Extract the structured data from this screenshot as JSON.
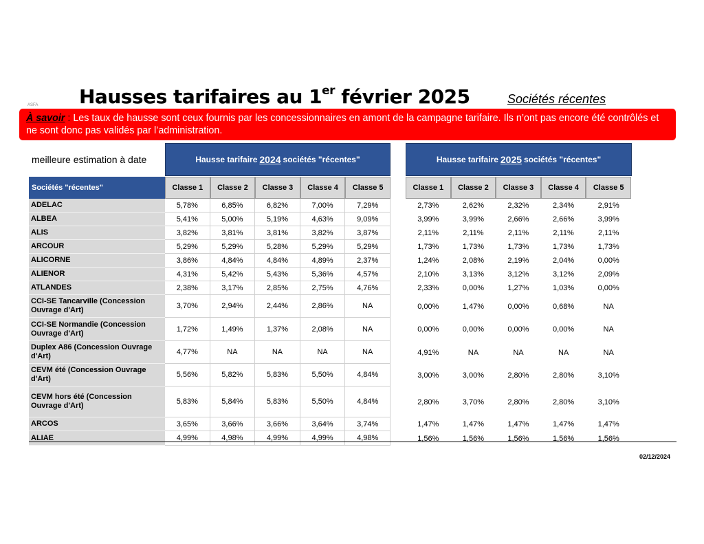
{
  "header": {
    "logo_text": "ASFA",
    "title_prefix": "Hausses tarifaires au 1",
    "title_sup": "er",
    "title_suffix": " février 2025",
    "subtitle": "Sociétés récentes"
  },
  "banner": {
    "lead": "À savoir",
    "colon": " :",
    "text": " Les taux de hausse sont ceux fournis par les concessionnaires en amont de la campagne tarifaire. Ils n’ont pas encore été contrôlés et ne sont donc pas validés par l’administration.",
    "color": "#ff0000"
  },
  "estimate_label": "meilleure estimation à date",
  "table": {
    "societes_header": "Sociétés \"récentes\"",
    "groups": [
      {
        "prefix": "Hausse tarifaire",
        "year": "2024",
        "suffix": "sociétés \"récentes\""
      },
      {
        "prefix": "Hausse tarifaire",
        "year": "2025",
        "suffix": "sociétés \"récentes\""
      }
    ],
    "classes": [
      "Classe 1",
      "Classe 2",
      "Classe 3",
      "Classe 4",
      "Classe 5"
    ],
    "rows": [
      {
        "name": "ADELAC",
        "v2024": [
          "5,78%",
          "6,85%",
          "6,82%",
          "7,00%",
          "7,29%"
        ],
        "v2025": [
          "2,73%",
          "2,62%",
          "2,32%",
          "2,34%",
          "2,91%"
        ]
      },
      {
        "name": "ALBEA",
        "v2024": [
          "5,41%",
          "5,00%",
          "5,19%",
          "4,63%",
          "9,09%"
        ],
        "v2025": [
          "3,99%",
          "3,99%",
          "2,66%",
          "2,66%",
          "3,99%"
        ]
      },
      {
        "name": "ALIS",
        "v2024": [
          "3,82%",
          "3,81%",
          "3,81%",
          "3,82%",
          "3,87%"
        ],
        "v2025": [
          "2,11%",
          "2,11%",
          "2,11%",
          "2,11%",
          "2,11%"
        ]
      },
      {
        "name": "ARCOUR",
        "v2024": [
          "5,29%",
          "5,29%",
          "5,28%",
          "5,29%",
          "5,29%"
        ],
        "v2025": [
          "1,73%",
          "1,73%",
          "1,73%",
          "1,73%",
          "1,73%"
        ]
      },
      {
        "name": "ALICORNE",
        "v2024": [
          "3,86%",
          "4,84%",
          "4,84%",
          "4,89%",
          "2,37%"
        ],
        "v2025": [
          "1,24%",
          "2,08%",
          "2,19%",
          "2,04%",
          "0,00%"
        ]
      },
      {
        "name": "ALIENOR",
        "v2024": [
          "4,31%",
          "5,42%",
          "5,43%",
          "5,36%",
          "4,57%"
        ],
        "v2025": [
          "2,10%",
          "3,13%",
          "3,12%",
          "3,12%",
          "2,09%"
        ]
      },
      {
        "name": "ATLANDES",
        "v2024": [
          "2,38%",
          "3,17%",
          "2,85%",
          "2,75%",
          "4,76%"
        ],
        "v2025": [
          "2,33%",
          "0,00%",
          "1,27%",
          "1,03%",
          "0,00%"
        ]
      },
      {
        "name": "CCI-SE Tancarville (Concession Ouvrage d'Art)",
        "v2024": [
          "3,70%",
          "2,94%",
          "2,44%",
          "2,86%",
          "NA"
        ],
        "v2025": [
          "0,00%",
          "1,47%",
          "0,00%",
          "0,68%",
          "NA"
        ]
      },
      {
        "name": "CCI-SE Normandie (Concession Ouvrage d'Art)",
        "v2024": [
          "1,72%",
          "1,49%",
          "1,37%",
          "2,08%",
          "NA"
        ],
        "v2025": [
          "0,00%",
          "0,00%",
          "0,00%",
          "0,00%",
          "NA"
        ]
      },
      {
        "name": "Duplex A86 (Concession Ouvrage d'Art)",
        "v2024": [
          "4,77%",
          "NA",
          "NA",
          "NA",
          "NA"
        ],
        "v2025": [
          "4,91%",
          "NA",
          "NA",
          "NA",
          "NA"
        ]
      },
      {
        "name": "CEVM été (Concession Ouvrage d'Art)",
        "v2024": [
          "5,56%",
          "5,82%",
          "5,83%",
          "5,50%",
          "4,84%"
        ],
        "v2025": [
          "3,00%",
          "3,00%",
          "2,80%",
          "2,80%",
          "3,10%"
        ]
      },
      {
        "name": "CEVM hors été (Concession Ouvrage d'Art)",
        "v2024": [
          "5,83%",
          "5,84%",
          "5,83%",
          "5,50%",
          "4,84%"
        ],
        "v2025": [
          "2,80%",
          "3,70%",
          "2,80%",
          "2,80%",
          "3,10%"
        ]
      },
      {
        "name": "ARCOS",
        "v2024": [
          "3,65%",
          "3,66%",
          "3,66%",
          "3,64%",
          "3,74%"
        ],
        "v2025": [
          "1,47%",
          "1,47%",
          "1,47%",
          "1,47%",
          "1,47%"
        ]
      },
      {
        "name": "ALIAE",
        "v2024": [
          "4,99%",
          "4,98%",
          "4,99%",
          "4,99%",
          "4,98%"
        ],
        "v2025": [
          "1,56%",
          "1,56%",
          "1,56%",
          "1,56%",
          "1,56%"
        ]
      }
    ]
  },
  "footer_date": "02/12/2024",
  "colors": {
    "header_blue": "#2f5597",
    "class_grey": "#d9d9d9",
    "banner_red": "#ff0000"
  }
}
